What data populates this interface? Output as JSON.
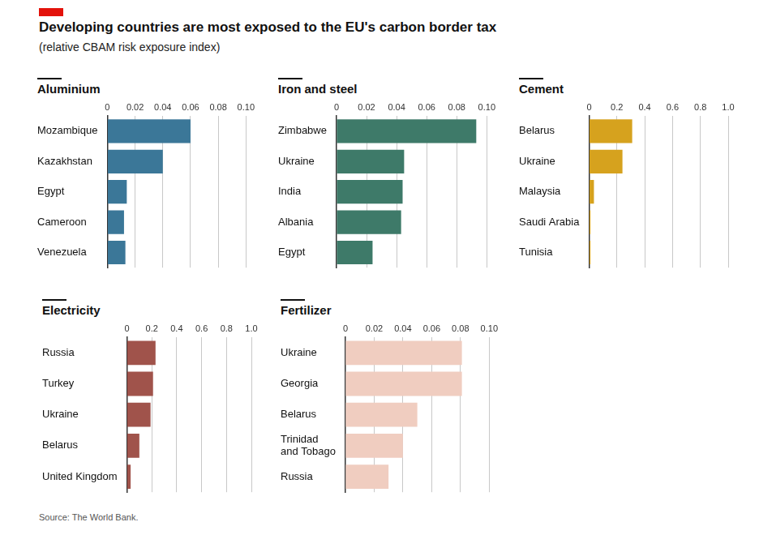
{
  "title": "Developing countries are most exposed to the EU's carbon border tax",
  "subtitle": "(relative CBAM risk exposure index)",
  "source": "Source: The World Bank.",
  "chart_data": [
    {
      "type": "bar",
      "title": "Aluminium",
      "orientation": "horizontal",
      "grid": true,
      "categories": [
        "Mozambique",
        "Kazakhstan",
        "Egypt",
        "Cameroon",
        "Venezuela"
      ],
      "values": [
        0.06,
        0.04,
        0.014,
        0.012,
        0.013
      ],
      "color": "#3b7798",
      "xlim": [
        0,
        0.1
      ],
      "xticks": [
        0,
        0.02,
        0.04,
        0.06,
        0.08,
        {
          "value": 0.1,
          "label": "0.10"
        }
      ]
    },
    {
      "type": "bar",
      "title": "Iron and steel",
      "orientation": "horizontal",
      "grid": true,
      "categories": [
        "Zimbabwe",
        "Ukraine",
        "India",
        "Albania",
        "Egypt"
      ],
      "values": [
        0.093,
        0.045,
        0.044,
        0.043,
        0.024
      ],
      "color": "#3e7a69",
      "xlim": [
        0,
        0.1
      ],
      "xticks": [
        0,
        0.02,
        0.04,
        0.06,
        0.08,
        {
          "value": 0.1,
          "label": "0.10"
        }
      ]
    },
    {
      "type": "bar",
      "title": "Cement",
      "orientation": "horizontal",
      "grid": true,
      "categories": [
        "Belarus",
        "Ukraine",
        "Malaysia",
        "Saudi Arabia",
        "Tunisia"
      ],
      "values": [
        0.31,
        0.24,
        0.035,
        0.01,
        0.01
      ],
      "color": "#d6a21e",
      "xlim": [
        0,
        1
      ],
      "xticks": [
        0,
        0.2,
        0.4,
        0.6,
        0.8,
        {
          "value": 1,
          "label": "1.0"
        }
      ]
    },
    {
      "type": "bar",
      "title": "Electricity",
      "orientation": "horizontal",
      "grid": true,
      "categories": [
        "Russia",
        "Turkey",
        "Ukraine",
        "Belarus",
        "United Kingdom"
      ],
      "values": [
        0.23,
        0.21,
        0.19,
        0.1,
        0.03
      ],
      "color": "#a0534b",
      "xlim": [
        0,
        1
      ],
      "xticks": [
        0,
        0.2,
        0.4,
        0.6,
        0.8,
        {
          "value": 1,
          "label": "1.0"
        }
      ]
    },
    {
      "type": "bar",
      "title": "Fertilizer",
      "orientation": "horizontal",
      "grid": true,
      "categories": [
        "Ukraine",
        "Georgia",
        "Belarus",
        "Trinidad and Tobago",
        "Russia"
      ],
      "values": [
        0.081,
        0.081,
        0.05,
        0.04,
        0.03
      ],
      "color": "#f0cdc0",
      "xlim": [
        0,
        0.1
      ],
      "xticks": [
        0,
        0.02,
        0.04,
        0.06,
        0.08,
        {
          "value": 0.1,
          "label": "0.10"
        }
      ]
    }
  ]
}
